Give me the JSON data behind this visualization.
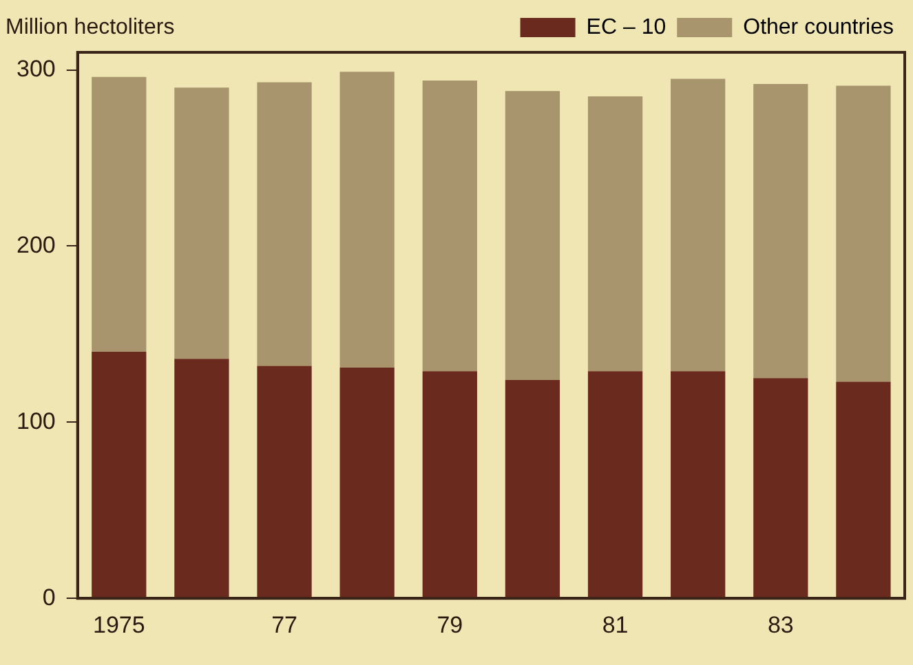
{
  "chart_data": {
    "type": "bar",
    "ylabel": "Million hectoliters",
    "stacked": true,
    "legend": "top right",
    "grid": false,
    "categories": [
      "1975",
      null,
      "77",
      null,
      "79",
      null,
      "81",
      null,
      "83",
      null
    ],
    "series": [
      {
        "name": "EC – 10",
        "color": "#6b2a1e",
        "values": [
          140,
          136,
          132,
          131,
          129,
          124,
          129,
          129,
          125,
          123
        ]
      },
      {
        "name": "Other countries",
        "color": "#a8956e",
        "values": [
          156,
          154,
          161,
          168,
          165,
          164,
          156,
          166,
          167,
          168
        ]
      }
    ],
    "ylim": [
      0,
      310
    ],
    "yticks": [
      0,
      100,
      200,
      300
    ]
  }
}
